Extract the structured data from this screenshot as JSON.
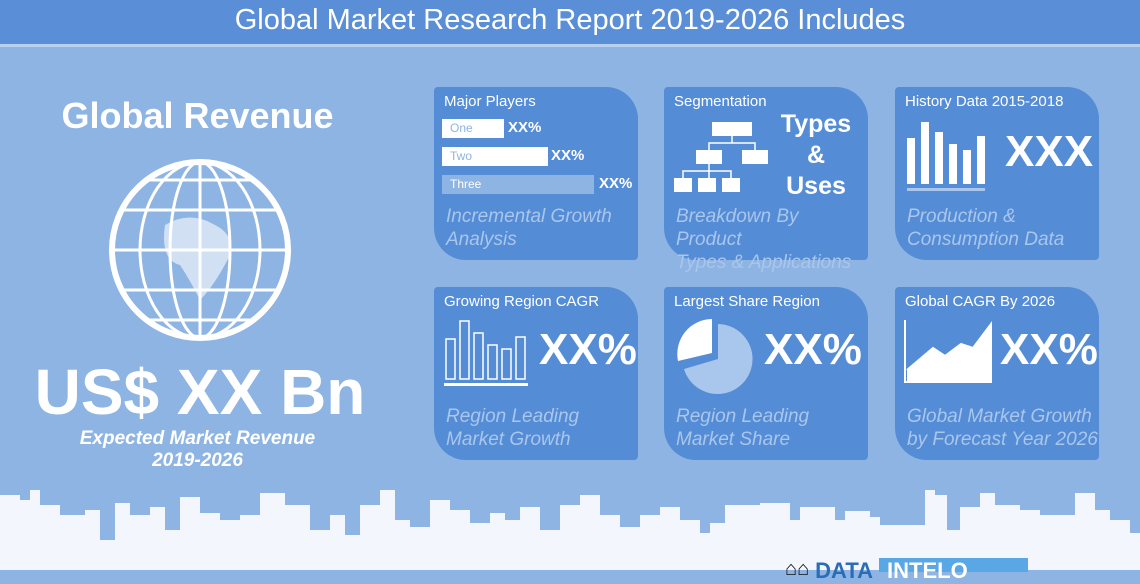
{
  "header": {
    "title": "Global Market Research Report 2019-2026 Includes"
  },
  "left": {
    "title": "Global Revenue",
    "value": "US$ XX Bn",
    "caption_line1": "Expected Market Revenue",
    "caption_line2": "2019-2026"
  },
  "cards": [
    {
      "title": "Major Players",
      "bars": [
        {
          "label": "One",
          "value": "XX%"
        },
        {
          "label": "Two",
          "value": "XX%"
        },
        {
          "label": "Three",
          "value": "XX%"
        }
      ],
      "sub1": "Incremental Growth",
      "sub2": "Analysis"
    },
    {
      "title": "Segmentation",
      "big1": "Types",
      "big2": "&",
      "big3": "Uses",
      "sub1": "Breakdown By Product",
      "sub2": "Types & Applications"
    },
    {
      "title": "History Data 2015-2018",
      "big": "XXX",
      "sub1": "Production &",
      "sub2": "Consumption Data"
    },
    {
      "title": "Growing Region CAGR",
      "big": "XX%",
      "sub1": "Region Leading",
      "sub2": "Market Growth"
    },
    {
      "title": "Largest Share Region",
      "big": "XX%",
      "sub1": "Region Leading",
      "sub2": "Market Share"
    },
    {
      "title": "Global CAGR By 2026",
      "big": "XX%",
      "sub1": "Global Market Growth",
      "sub2": "by Forecast Year 2026"
    }
  ],
  "logo": {
    "text1": "DATA",
    "text2": "INTELO"
  },
  "colors": {
    "background": "#8db4e2",
    "card": "#558cd6",
    "header": "#5a8fd8"
  }
}
